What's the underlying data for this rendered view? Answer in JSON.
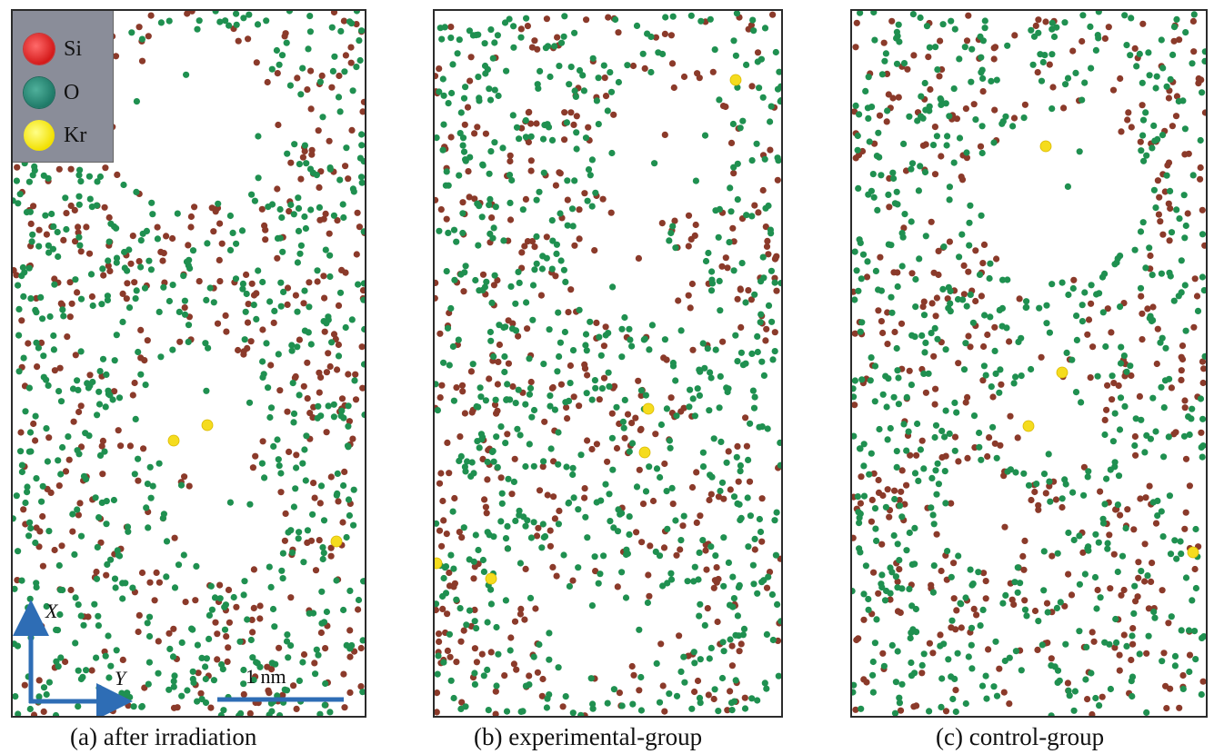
{
  "legend": {
    "items": [
      {
        "label": "Si",
        "color": "#e83a3a"
      },
      {
        "label": "O",
        "color": "#2e8b79"
      },
      {
        "label": "Kr",
        "color": "#ffee00"
      }
    ]
  },
  "axes": {
    "x_label": "X",
    "y_label": "Y",
    "arrow_color": "#2e6db5"
  },
  "scale_bar": {
    "label": "1 nm"
  },
  "atom_colors": {
    "si": "#8b3a2a",
    "o": "#1f9050",
    "kr": "#f5dc1e"
  },
  "panels": [
    {
      "caption": "(a) after irradiation",
      "seed": 11,
      "si_count": 430,
      "o_count": 640
    },
    {
      "caption": "(b) experimental-group",
      "seed": 47,
      "si_count": 450,
      "o_count": 680
    },
    {
      "caption": "(c) control-group",
      "seed": 83,
      "si_count": 440,
      "o_count": 660
    }
  ]
}
